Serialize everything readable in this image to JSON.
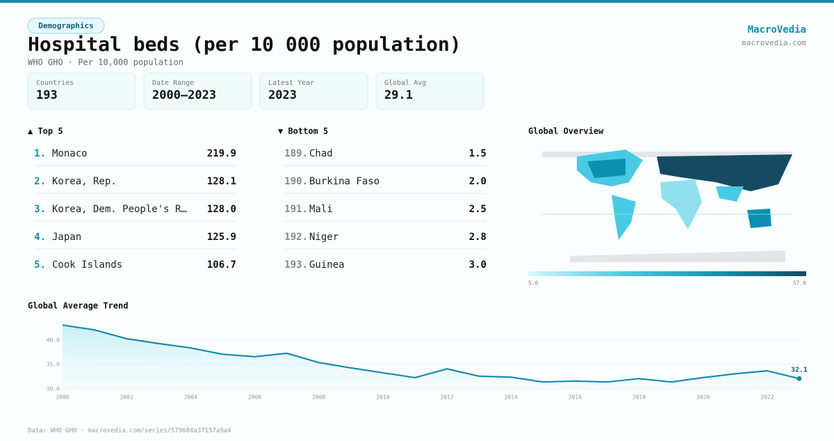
{
  "header": {
    "badge": "Demographics",
    "title": "Hospital beds (per 10 000 population)",
    "subtitle": "WHO GHO · Per 10,000 population",
    "brand": "MacroVedia",
    "site": "macrovedia.com"
  },
  "stats": [
    {
      "label": "Countries",
      "value": "193"
    },
    {
      "label": "Date Range",
      "value": "2000–2023"
    },
    {
      "label": "Latest Year",
      "value": "2023"
    },
    {
      "label": "Global Avg",
      "value": "29.1"
    }
  ],
  "top": {
    "title": "▲ Top 5",
    "rows": [
      [
        "1.",
        "Monaco",
        "219.9"
      ],
      [
        "2.",
        "Korea, Rep.",
        "128.1"
      ],
      [
        "3.",
        "Korea, Dem. People's R…",
        "128.0"
      ],
      [
        "4.",
        "Japan",
        "125.9"
      ],
      [
        "5.",
        "Cook Islands",
        "106.7"
      ]
    ]
  },
  "bottom": {
    "title": "▼ Bottom 5",
    "rows": [
      [
        "189.",
        "Chad",
        "1.5"
      ],
      [
        "190.",
        "Burkina Faso",
        "2.0"
      ],
      [
        "191.",
        "Mali",
        "2.5"
      ],
      [
        "192.",
        "Niger",
        "2.8"
      ],
      [
        "193.",
        "Guinea",
        "3.0"
      ]
    ]
  },
  "map": {
    "title": "Global Overview",
    "scale_min": "5.6",
    "scale_max": "57.0"
  },
  "chart_data": {
    "type": "line",
    "title": "Global Average Trend",
    "color": "#168aad",
    "x": [
      2000,
      2001,
      2002,
      2003,
      2004,
      2005,
      2006,
      2007,
      2008,
      2009,
      2010,
      2011,
      2012,
      2013,
      2014,
      2015,
      2016,
      2017,
      2018,
      2019,
      2020,
      2021,
      2022,
      2023
    ],
    "values": [
      43.1,
      42.1,
      40.3,
      39.3,
      38.4,
      37.1,
      36.6,
      37.3,
      35.4,
      34.3,
      33.3,
      32.3,
      34.1,
      32.6,
      32.4,
      31.4,
      31.6,
      31.4,
      32.1,
      31.4,
      32.3,
      33.1,
      33.7,
      32.1
    ],
    "xlim": [
      2000,
      2023
    ],
    "ylim": [
      30,
      43.5
    ],
    "xticks": [
      2000,
      2002,
      2004,
      2006,
      2008,
      2010,
      2012,
      2014,
      2016,
      2018,
      2020,
      2022
    ],
    "yticks": [
      {
        "value": 30,
        "label": "30.0"
      },
      {
        "value": 35,
        "label": "35.0"
      },
      {
        "value": 40,
        "label": "40.0"
      }
    ],
    "grid": true
  },
  "footer": "Data: WHO GHO · macrovedia.com/series/579684a37157a9a4"
}
